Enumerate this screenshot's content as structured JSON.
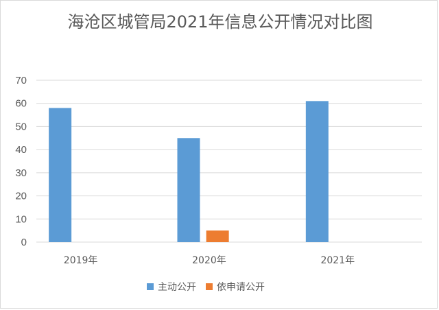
{
  "chart_data": {
    "type": "bar",
    "title": "海沧区城管局2021年信息公开情况对比图",
    "categories": [
      "2019年",
      "2020年",
      "2021年"
    ],
    "series": [
      {
        "name": "主动公开",
        "values": [
          58,
          45,
          61
        ],
        "color": "#5b9bd5"
      },
      {
        "name": "依申请公开",
        "values": [
          0,
          5,
          0
        ],
        "color": "#ed7d31"
      }
    ],
    "ylim": [
      0,
      70
    ],
    "yticks": [
      0,
      10,
      20,
      30,
      40,
      50,
      60,
      70
    ],
    "grid": true,
    "legend_position": "bottom"
  }
}
